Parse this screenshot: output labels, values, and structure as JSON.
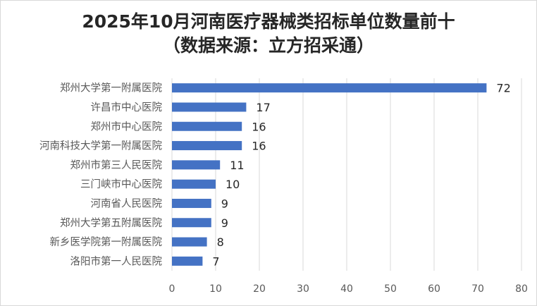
{
  "chart_data": {
    "type": "bar",
    "orientation": "horizontal",
    "title": "2025年10月河南医疗器械类招标单位数量前十",
    "subtitle": "（数据来源：立方招采通）",
    "categories": [
      "郑州大学第一附属医院",
      "许昌市中心医院",
      "郑州市中心医院",
      "河南科技大学第一附属医院",
      "郑州市第三人民医院",
      "三门峡市中心医院",
      "河南省人民医院",
      "郑州大学第五附属医院",
      "新乡医学院第一附属医院",
      "洛阳市第一人民医院"
    ],
    "values": [
      72,
      17,
      16,
      16,
      11,
      10,
      9,
      9,
      8,
      7
    ],
    "xlim": [
      0,
      80
    ],
    "xticks": [
      0,
      10,
      20,
      30,
      40,
      50,
      60,
      70,
      80
    ],
    "grid": true,
    "legend": "none",
    "colors": {
      "bar": "#4472c4",
      "grid": "#d9d9d9"
    }
  }
}
